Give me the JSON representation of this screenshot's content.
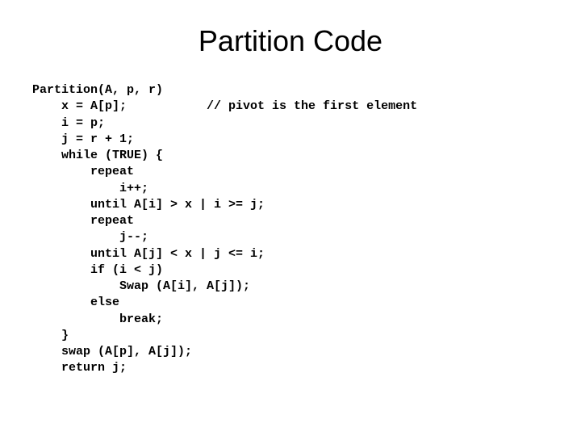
{
  "slide": {
    "title": "Partition Code",
    "code_lines": [
      "Partition(A, p, r)",
      "    x = A[p];           // pivot is the first element",
      "    i = p;",
      "    j = r + 1;",
      "    while (TRUE) {",
      "        repeat",
      "            i++;",
      "        until A[i] > x | i >= j;",
      "        repeat",
      "            j--;",
      "        until A[j] < x | j <= i;",
      "        if (i < j)",
      "            Swap (A[i], A[j]);",
      "        else",
      "            break;",
      "    }",
      "    swap (A[p], A[j]);",
      "    return j;"
    ],
    "title_fontsize": 36,
    "code_fontsize": 15,
    "background_color": "#ffffff",
    "text_color": "#000000",
    "code_font": "Courier New"
  }
}
